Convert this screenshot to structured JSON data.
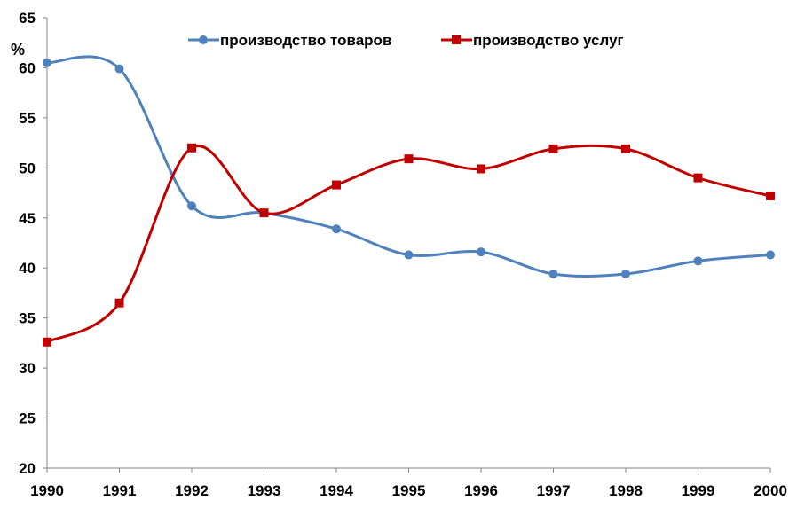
{
  "chart_data": {
    "type": "line",
    "y_unit_label": "%",
    "categories": [
      "1990",
      "1991",
      "1992",
      "1993",
      "1994",
      "1995",
      "1996",
      "1997",
      "1998",
      "1999",
      "2000"
    ],
    "ylim": [
      20,
      65
    ],
    "yticks": [
      20,
      25,
      30,
      35,
      40,
      45,
      50,
      55,
      60,
      65
    ],
    "grid": false,
    "legend_position": "top-center",
    "series": [
      {
        "name": "производство товаров",
        "marker": "circle",
        "color": "#4F81BD",
        "values": [
          60.5,
          59.9,
          46.2,
          45.5,
          43.9,
          41.3,
          41.6,
          39.4,
          39.4,
          40.7,
          41.3
        ]
      },
      {
        "name": "производство услуг",
        "marker": "square",
        "color": "#C00000",
        "values": [
          32.6,
          36.5,
          52.0,
          45.5,
          48.3,
          50.9,
          49.9,
          51.9,
          51.9,
          49.0,
          47.2
        ]
      }
    ]
  }
}
